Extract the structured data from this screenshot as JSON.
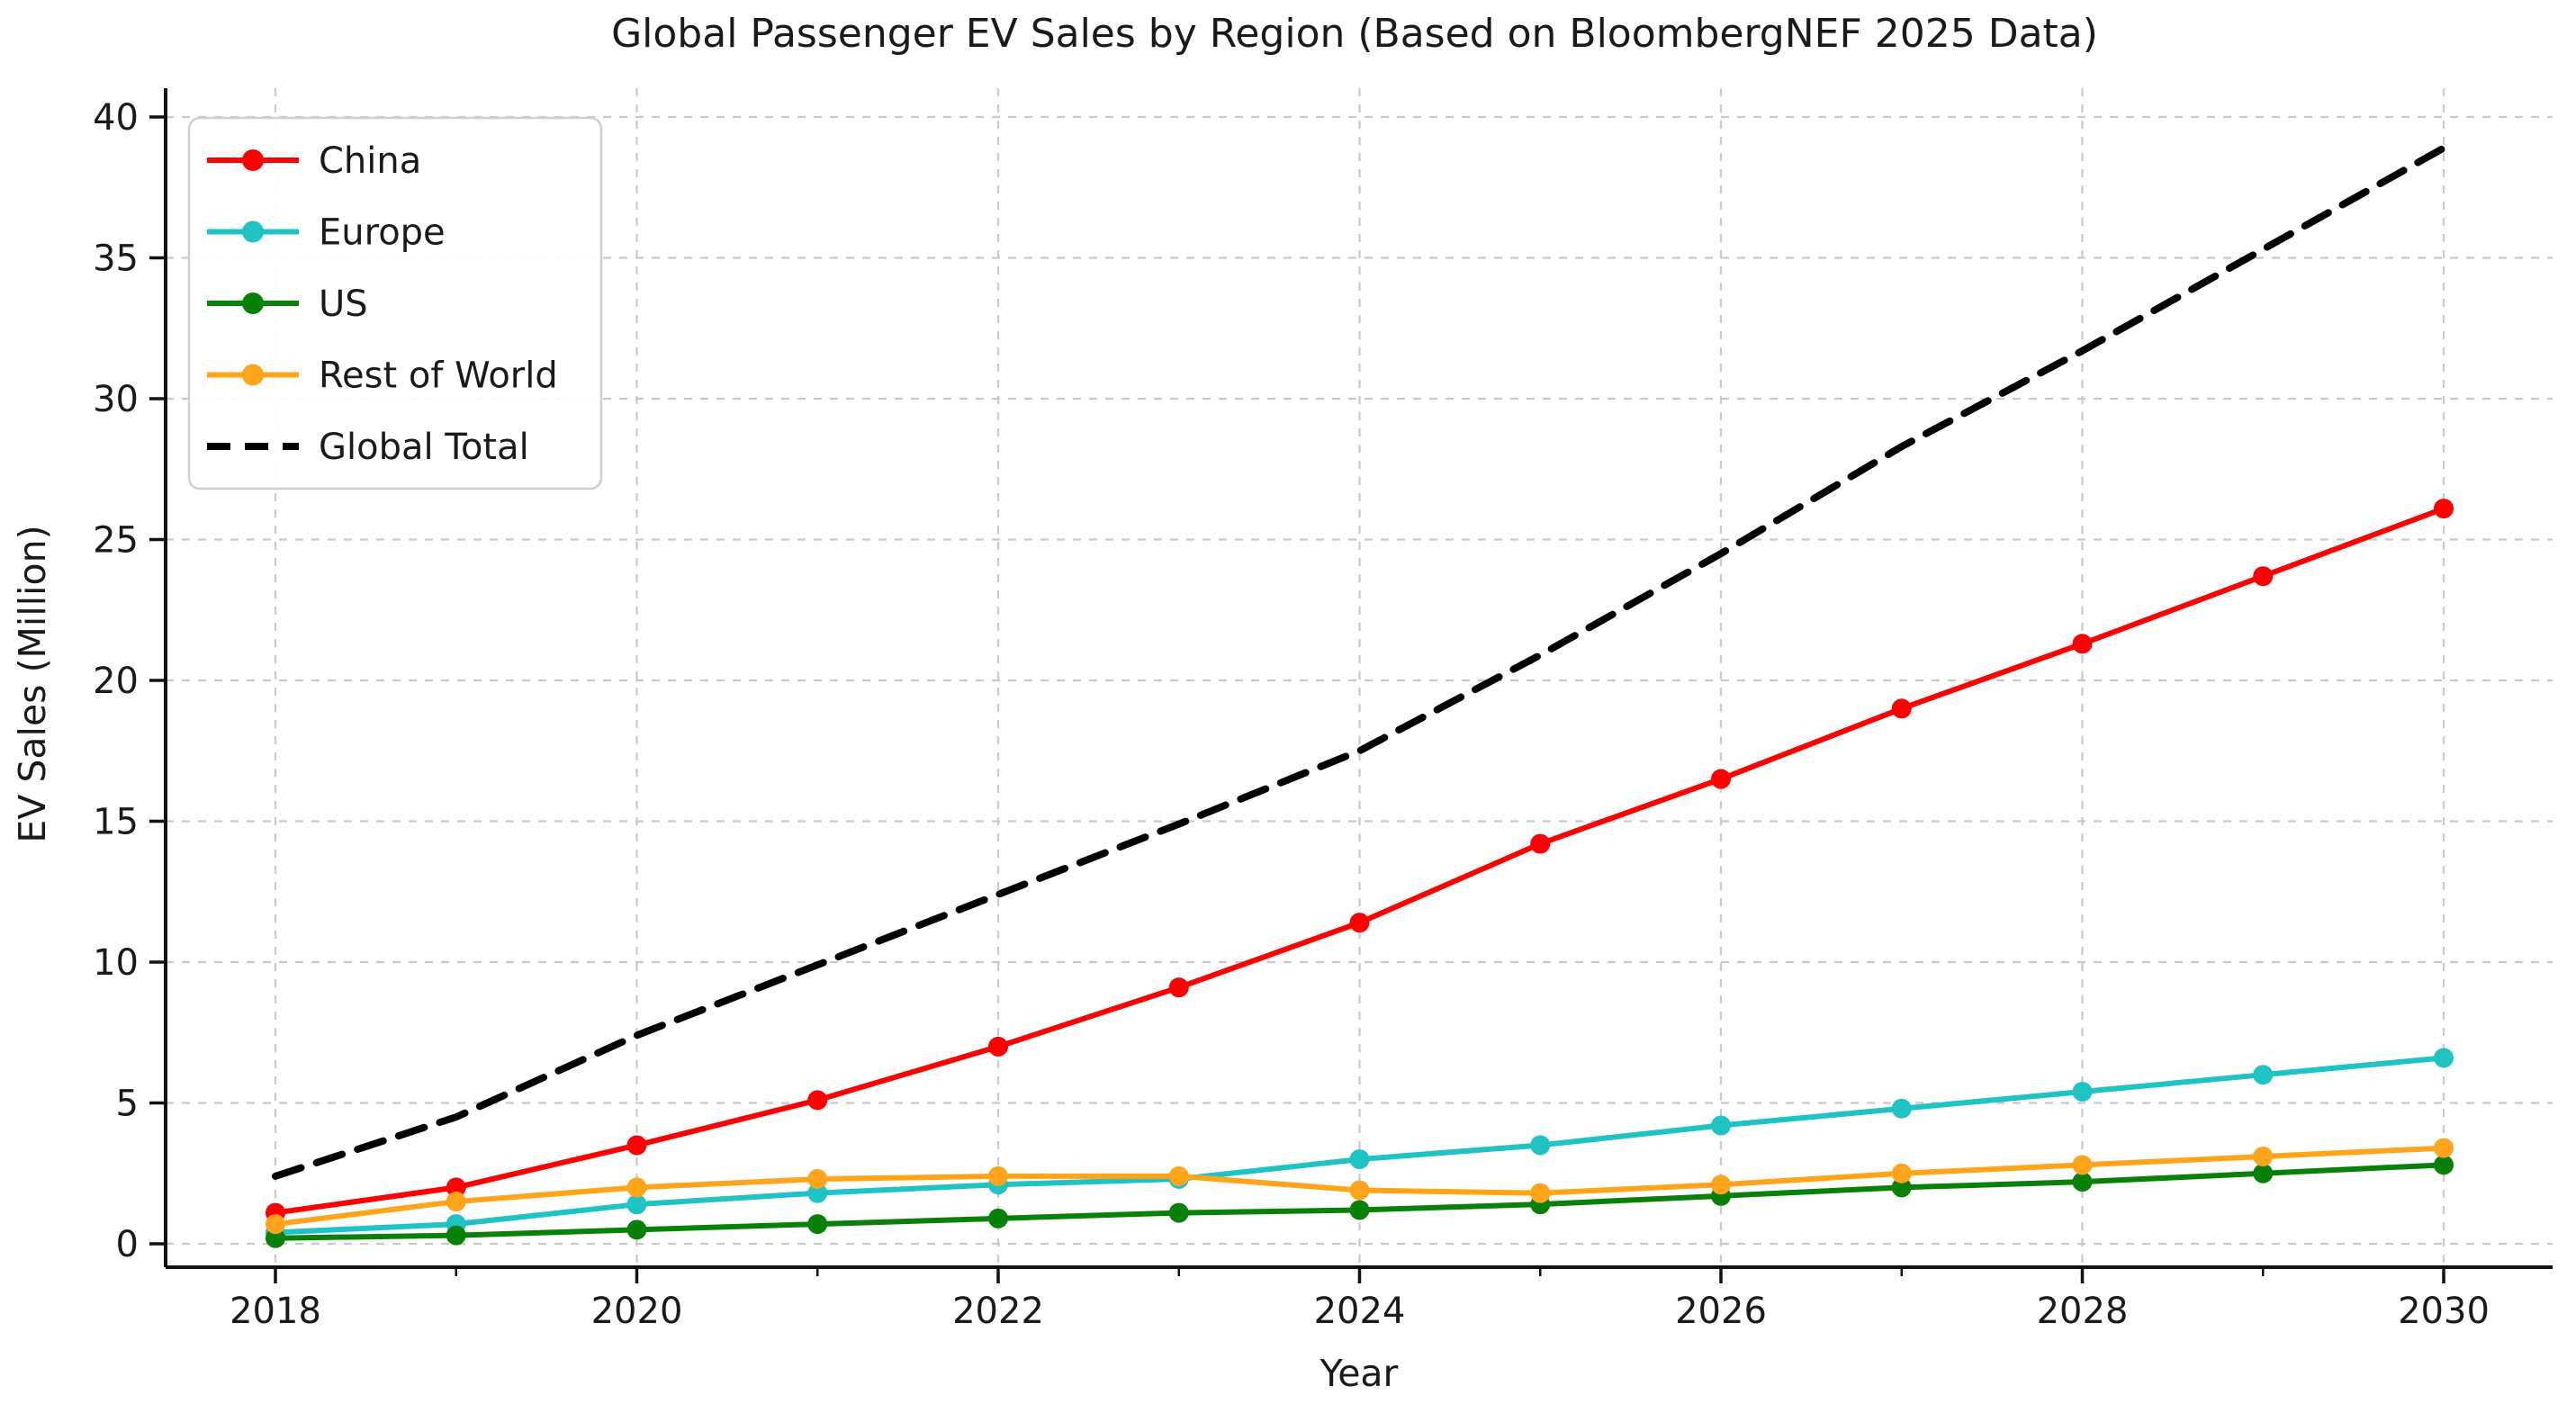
{
  "title": "Global Passenger EV Sales by Region (Based on BloombergNEF 2025 Data)",
  "chart_data": {
    "type": "line",
    "title": "Global Passenger EV Sales by Region (Based on BloombergNEF 2025 Data)",
    "xlabel": "Year",
    "ylabel": "EV Sales (Million)",
    "x": [
      2018,
      2019,
      2020,
      2021,
      2022,
      2023,
      2024,
      2025,
      2026,
      2027,
      2028,
      2029,
      2030
    ],
    "x_tick_labels": [
      "2018",
      "2020",
      "2022",
      "2024",
      "2026",
      "2028",
      "2030"
    ],
    "y_ticks": [
      0,
      5,
      10,
      15,
      20,
      25,
      30,
      35,
      40
    ],
    "ylim": [
      -0.75,
      41
    ],
    "grid": true,
    "grid_style": "dashed",
    "grid_color": "#c9c9c9",
    "legend_position": "upper left",
    "background_color": "#ffffff",
    "series": [
      {
        "name": "China",
        "color": "#ff0000",
        "line_style": "solid",
        "marker": "circle",
        "values": [
          1.1,
          2.0,
          3.5,
          5.1,
          7.0,
          9.1,
          11.4,
          14.2,
          16.5,
          19.0,
          21.3,
          23.7,
          26.1
        ]
      },
      {
        "name": "Europe",
        "color": "#20c3c4",
        "line_style": "solid",
        "marker": "circle",
        "values": [
          0.4,
          0.7,
          1.4,
          1.8,
          2.1,
          2.3,
          3.0,
          3.5,
          4.2,
          4.8,
          5.4,
          6.0,
          6.6
        ]
      },
      {
        "name": "US",
        "color": "#098109",
        "line_style": "solid",
        "marker": "circle",
        "values": [
          0.2,
          0.3,
          0.5,
          0.7,
          0.9,
          1.1,
          1.2,
          1.4,
          1.7,
          2.0,
          2.2,
          2.5,
          2.8
        ]
      },
      {
        "name": "Rest of World",
        "color": "#ffa51c",
        "line_style": "solid",
        "marker": "circle",
        "values": [
          0.7,
          1.5,
          2.0,
          2.3,
          2.4,
          2.4,
          1.9,
          1.8,
          2.1,
          2.5,
          2.8,
          3.1,
          3.4
        ]
      },
      {
        "name": "Global Total",
        "color": "#000000",
        "line_style": "dashed",
        "marker": "none",
        "values": [
          2.4,
          4.5,
          7.4,
          9.9,
          12.4,
          14.9,
          17.5,
          20.9,
          24.5,
          28.3,
          31.7,
          35.3,
          38.9
        ]
      }
    ]
  }
}
